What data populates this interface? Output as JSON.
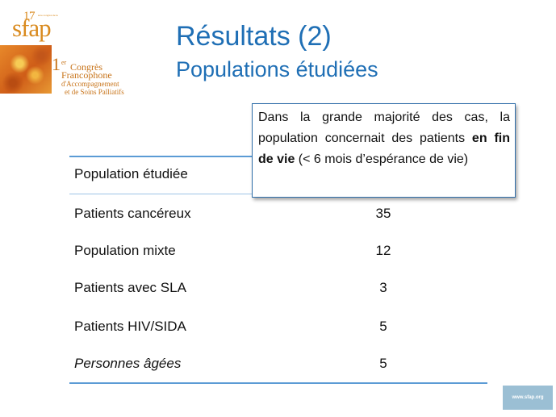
{
  "logo": {
    "number": "17",
    "tiny_text": "ème congrès de la",
    "wordmark": "sfap",
    "congress_ordinal": "1",
    "congress_ordinal_sup": "er",
    "congress_line1": "Congrès",
    "congress_line2": "Francophone",
    "congress_line3": "d'Accompagnement",
    "congress_line4": "et de Soins Palliatifs"
  },
  "header": {
    "title": "Résultats (2)",
    "subtitle": "Populations étudiées"
  },
  "table": {
    "header_label": "Population étudiée",
    "rows": [
      {
        "label": "Patients cancéreux",
        "value": "35"
      },
      {
        "label": "Population mixte",
        "value": "12"
      },
      {
        "label": "Patients avec SLA",
        "value": "3"
      },
      {
        "label": "Patients HIV/SIDA",
        "value": "5"
      },
      {
        "label": "Personnes âgées",
        "value": "5"
      }
    ]
  },
  "callout": {
    "text_before": "Dans la grande majorité des cas, la population concernait des patients ",
    "text_bold": "en fin de vie",
    "text_after": " (< 6 mois d’espérance de vie)"
  },
  "footer": {
    "url": "www.sfap.org"
  },
  "colors": {
    "title": "#1f6fb5",
    "accent_line": "#5b9bd5",
    "logo": "#d98a1e",
    "callout_border": "#2f6ea9",
    "badge": "#9bbfd4"
  }
}
